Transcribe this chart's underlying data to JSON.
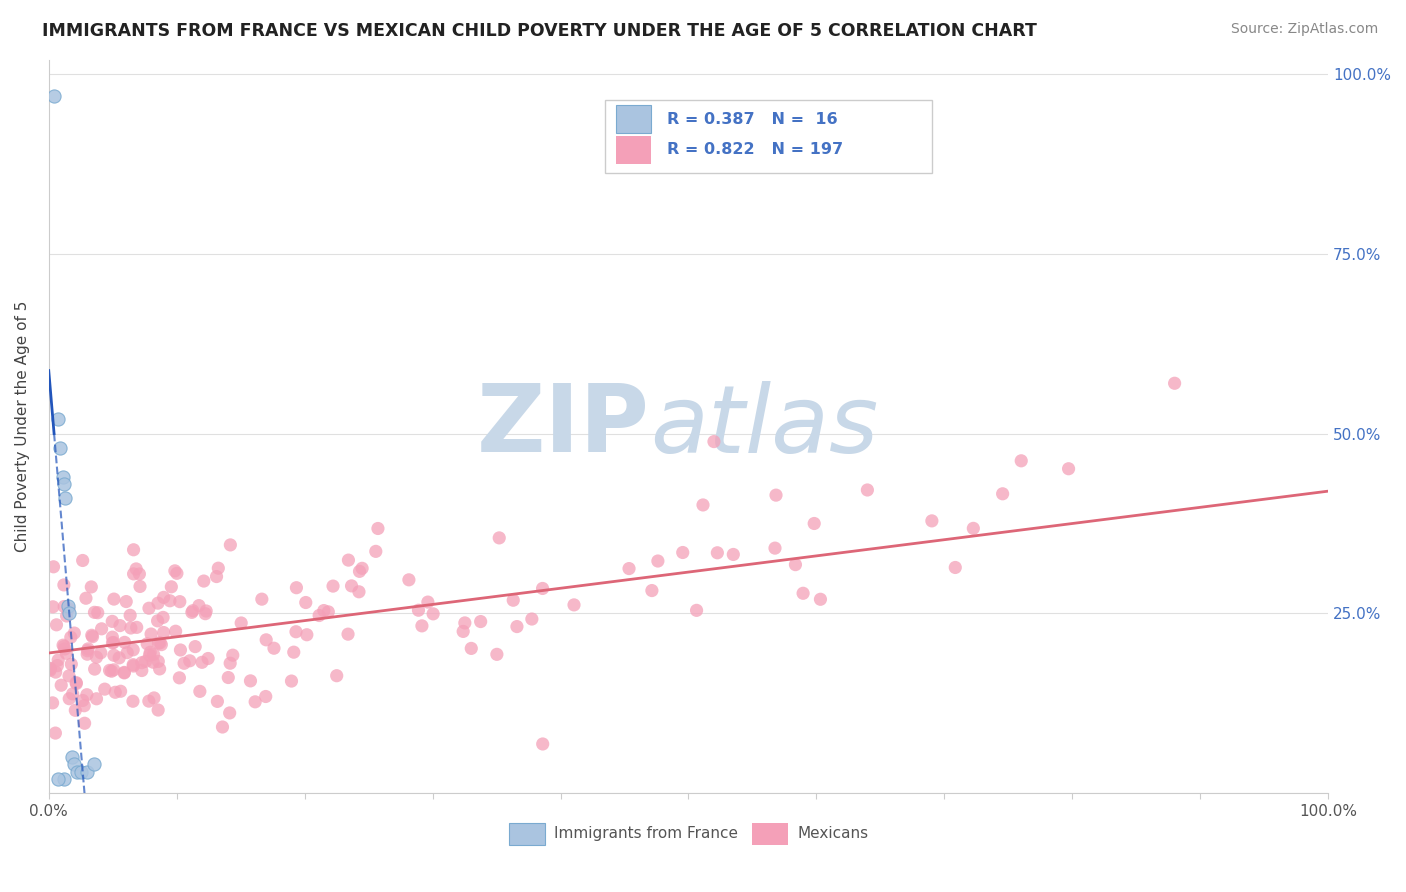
{
  "title": "IMMIGRANTS FROM FRANCE VS MEXICAN CHILD POVERTY UNDER THE AGE OF 5 CORRELATION CHART",
  "source": "Source: ZipAtlas.com",
  "ylabel": "Child Poverty Under the Age of 5",
  "legend_france_r": "0.387",
  "legend_france_n": "16",
  "legend_mexico_r": "0.822",
  "legend_mexico_n": "197",
  "france_color": "#aac4e0",
  "france_edge_color": "#7aaad0",
  "mexico_color": "#f4a0b8",
  "mexico_edge_color": "#f4a0b8",
  "france_line_color": "#2255bb",
  "mexico_line_color": "#dd6677",
  "watermark_zip": "ZIP",
  "watermark_atlas": "atlas",
  "watermark_color_zip": "#c8d8e8",
  "watermark_color_atlas": "#c8d8e8",
  "background_color": "#ffffff",
  "grid_color": "#e0e0e0",
  "r_n_color": "#4472c4",
  "right_tick_color": "#4472c4",
  "title_color": "#222222",
  "source_color": "#888888",
  "axis_label_color": "#444444",
  "bottom_legend_color": "#555555"
}
